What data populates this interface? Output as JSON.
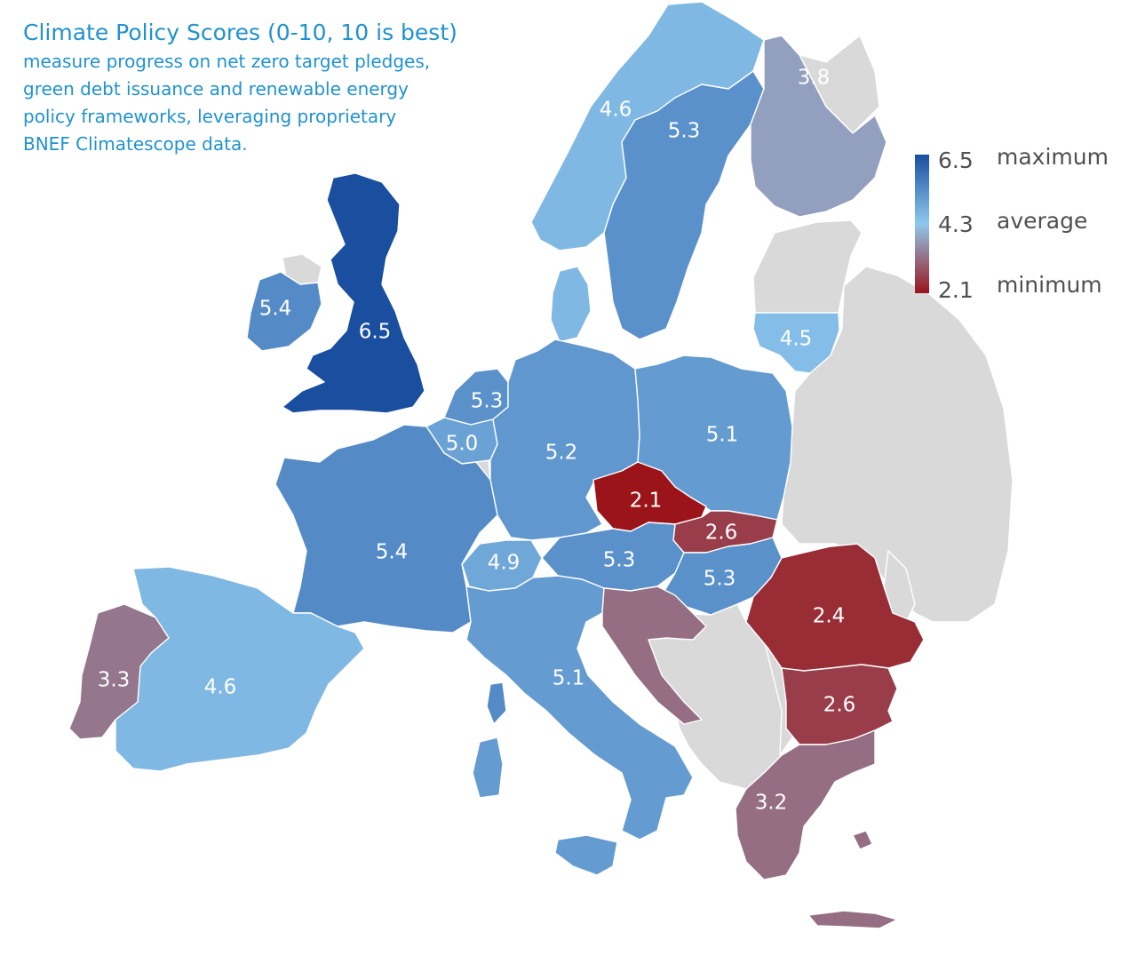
{
  "header": {
    "title": "Climate Policy Scores (0-10, 10 is best)",
    "subtitle": "measure progress on net zero target pledges,\ngreen debt issuance and renewable energy\npolicy frameworks, leveraging proprietary\nBNEF Climatescope data."
  },
  "legend": {
    "max_value": "6.5",
    "max_label": "maximum",
    "avg_value": "4.3",
    "avg_label": "average",
    "min_value": "2.1",
    "min_label": "minimum",
    "max_color": "#1a4fa0",
    "avg_color": "#8fc8ee",
    "min_color": "#9b1419"
  },
  "scale": {
    "min": 2.1,
    "avg": 4.3,
    "max": 6.5
  },
  "colors": {
    "no_data": "#d9d9d9",
    "title_text": "#1f92cf",
    "label_text": "#ffffff"
  },
  "countries": [
    {
      "id": "uk",
      "label": "6.5",
      "value": 6.5
    },
    {
      "id": "ireland",
      "label": "5.4",
      "value": 5.4
    },
    {
      "id": "norway",
      "label": "4.6",
      "value": 4.6
    },
    {
      "id": "sweden",
      "label": "5.3",
      "value": 5.3
    },
    {
      "id": "finland",
      "label": "3.8",
      "value": 3.8
    },
    {
      "id": "denmark",
      "label": "",
      "value": 4.6
    },
    {
      "id": "lithuania",
      "label": "4.5",
      "value": 4.5
    },
    {
      "id": "netherlands",
      "label": "5.3",
      "value": 5.3
    },
    {
      "id": "belgium",
      "label": "5.0",
      "value": 5.0
    },
    {
      "id": "germany",
      "label": "5.2",
      "value": 5.2
    },
    {
      "id": "poland",
      "label": "5.1",
      "value": 5.1
    },
    {
      "id": "france",
      "label": "5.4",
      "value": 5.4
    },
    {
      "id": "czechia",
      "label": "2.1",
      "value": 2.1
    },
    {
      "id": "slovakia",
      "label": "2.6",
      "value": 2.6
    },
    {
      "id": "switzerland",
      "label": "4.9",
      "value": 4.9
    },
    {
      "id": "austria",
      "label": "5.3",
      "value": 5.3
    },
    {
      "id": "hungary",
      "label": "5.3",
      "value": 5.3
    },
    {
      "id": "romania",
      "label": "2.4",
      "value": 2.4
    },
    {
      "id": "bulgaria",
      "label": "2.6",
      "value": 2.6
    },
    {
      "id": "spain",
      "label": "4.6",
      "value": 4.6
    },
    {
      "id": "portugal",
      "label": "3.3",
      "value": 3.3
    },
    {
      "id": "italy",
      "label": "5.1",
      "value": 5.1
    },
    {
      "id": "croatia",
      "label": "",
      "value": 3.2
    },
    {
      "id": "greece",
      "label": "3.2",
      "value": 3.2
    }
  ]
}
